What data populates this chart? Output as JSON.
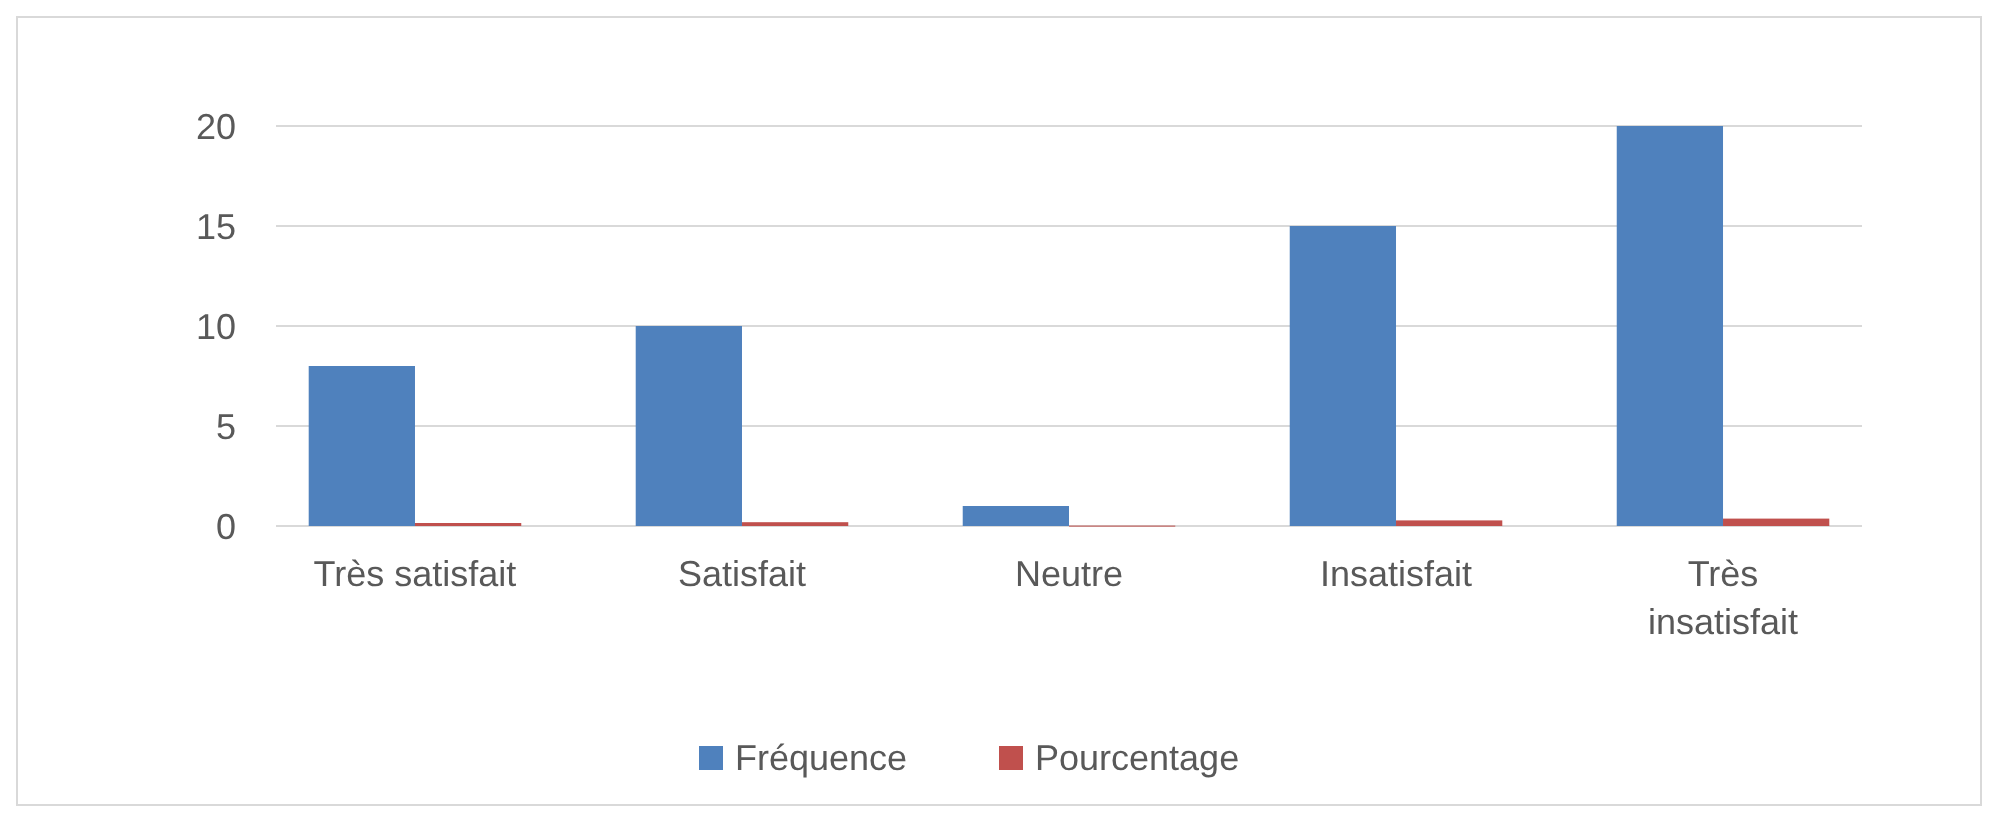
{
  "chart_data": {
    "type": "bar",
    "categories": [
      "Très satisfait",
      "Satisfait",
      "Neutre",
      "Insatisfait",
      "Très insatisfait"
    ],
    "series": [
      {
        "name": "Fréquence",
        "color": "#4f81bd",
        "values": [
          8,
          10,
          1,
          15,
          20
        ]
      },
      {
        "name": "Pourcentage",
        "color": "#c0504d",
        "values": [
          0.15,
          0.19,
          0.02,
          0.28,
          0.37
        ]
      }
    ],
    "ylim": [
      0,
      20
    ],
    "yticks": [
      0,
      5,
      10,
      15,
      20
    ],
    "grid": "y",
    "legend": "bottom"
  }
}
